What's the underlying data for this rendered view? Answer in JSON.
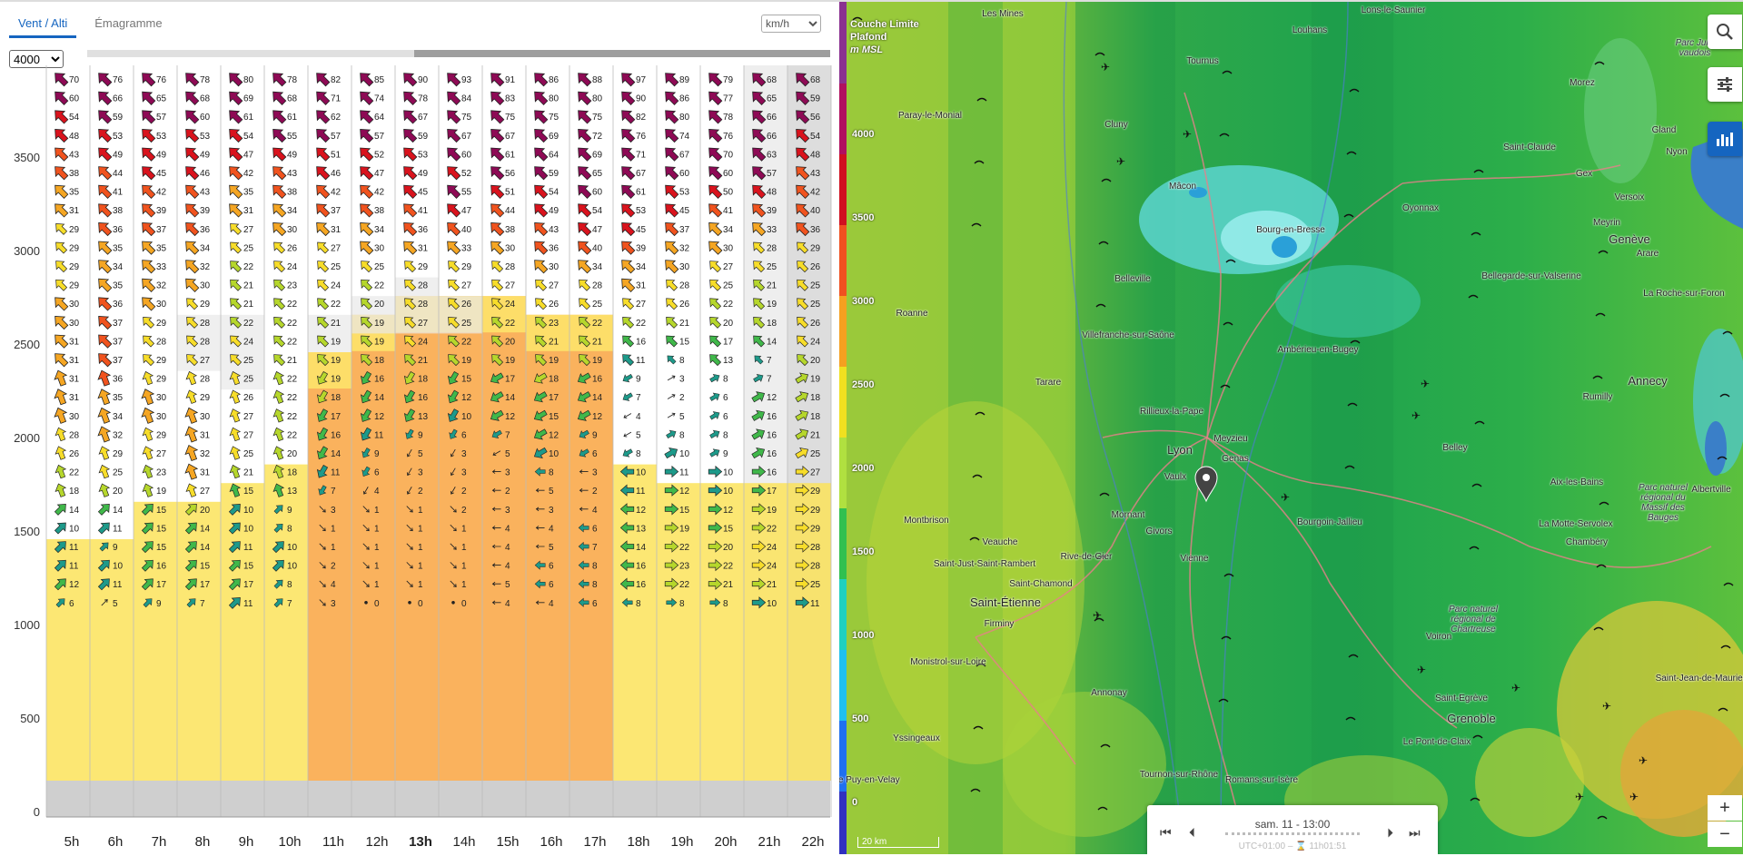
{
  "tabs": [
    {
      "label": "Vent / Alti",
      "active": true
    },
    {
      "label": "Émagramme",
      "active": false
    }
  ],
  "unit": {
    "selected": "km/h"
  },
  "altitude": {
    "selected": "4000"
  },
  "y_axis_labels": [
    "3500",
    "3000",
    "2500",
    "2000",
    "1500",
    "1000",
    "500",
    "0"
  ],
  "hours": [
    "5h",
    "6h",
    "7h",
    "8h",
    "9h",
    "10h",
    "11h",
    "12h",
    "13h",
    "14h",
    "15h",
    "16h",
    "17h",
    "18h",
    "19h",
    "20h",
    "21h",
    "22h"
  ],
  "current_hour": "13h",
  "wind_table": [
    [
      "70",
      "76",
      "76",
      "78",
      "80",
      "78",
      "82",
      "85",
      "90",
      "93",
      "91",
      "86",
      "88",
      "97",
      "89",
      "79",
      "68",
      "68"
    ],
    [
      "60",
      "66",
      "65",
      "68",
      "69",
      "68",
      "71",
      "74",
      "78",
      "84",
      "83",
      "80",
      "80",
      "90",
      "86",
      "77",
      "65",
      "59"
    ],
    [
      "54",
      "59",
      "57",
      "60",
      "61",
      "61",
      "62",
      "64",
      "67",
      "75",
      "75",
      "75",
      "75",
      "82",
      "80",
      "78",
      "66",
      "56"
    ],
    [
      "48",
      "53",
      "53",
      "53",
      "54",
      "55",
      "57",
      "57",
      "59",
      "67",
      "67",
      "69",
      "72",
      "76",
      "74",
      "76",
      "66",
      "54"
    ],
    [
      "43",
      "49",
      "49",
      "49",
      "47",
      "49",
      "51",
      "52",
      "53",
      "60",
      "61",
      "64",
      "69",
      "71",
      "67",
      "70",
      "63",
      "48"
    ],
    [
      "38",
      "44",
      "45",
      "46",
      "42",
      "43",
      "46",
      "47",
      "49",
      "52",
      "56",
      "59",
      "65",
      "67",
      "60",
      "60",
      "57",
      "43"
    ],
    [
      "35",
      "41",
      "42",
      "43",
      "35",
      "38",
      "42",
      "42",
      "45",
      "55",
      "51",
      "54",
      "60",
      "61",
      "53",
      "50",
      "48",
      "42"
    ],
    [
      "31",
      "38",
      "39",
      "39",
      "31",
      "34",
      "37",
      "38",
      "41",
      "47",
      "44",
      "49",
      "54",
      "53",
      "45",
      "41",
      "39",
      "40"
    ],
    [
      "29",
      "36",
      "37",
      "36",
      "27",
      "30",
      "31",
      "34",
      "36",
      "40",
      "38",
      "43",
      "47",
      "45",
      "37",
      "34",
      "33",
      "36"
    ],
    [
      "29",
      "35",
      "35",
      "34",
      "25",
      "26",
      "27",
      "30",
      "31",
      "33",
      "30",
      "36",
      "40",
      "39",
      "32",
      "30",
      "28",
      "29"
    ],
    [
      "29",
      "34",
      "33",
      "32",
      "22",
      "24",
      "25",
      "25",
      "29",
      "29",
      "28",
      "30",
      "34",
      "34",
      "30",
      "27",
      "25",
      "26"
    ],
    [
      "29",
      "35",
      "32",
      "30",
      "21",
      "23",
      "24",
      "22",
      "28",
      "27",
      "27",
      "27",
      "28",
      "31",
      "28",
      "25",
      "21",
      "25"
    ],
    [
      "30",
      "36",
      "30",
      "29",
      "21",
      "22",
      "22",
      "20",
      "28",
      "26",
      "24",
      "26",
      "25",
      "27",
      "26",
      "22",
      "19",
      "25"
    ],
    [
      "30",
      "37",
      "29",
      "28",
      "22",
      "22",
      "21",
      "19",
      "27",
      "25",
      "22",
      "23",
      "22",
      "22",
      "21",
      "20",
      "18",
      "26"
    ],
    [
      "31",
      "37",
      "28",
      "28",
      "24",
      "22",
      "19",
      "19",
      "24",
      "22",
      "20",
      "21",
      "21",
      "16",
      "15",
      "17",
      "14",
      "24"
    ],
    [
      "31",
      "37",
      "29",
      "27",
      "25",
      "21",
      "19",
      "18",
      "21",
      "19",
      "19",
      "19",
      "19",
      "11",
      "8",
      "13",
      "7",
      "20"
    ],
    [
      "31",
      "36",
      "29",
      "28",
      "25",
      "22",
      "19",
      "16",
      "18",
      "15",
      "17",
      "18",
      "16",
      "9",
      "3",
      "8",
      "7",
      "19"
    ],
    [
      "31",
      "35",
      "30",
      "29",
      "26",
      "22",
      "18",
      "14",
      "16",
      "12",
      "14",
      "17",
      "14",
      "7",
      "2",
      "6",
      "12",
      "18"
    ],
    [
      "30",
      "34",
      "30",
      "30",
      "27",
      "22",
      "17",
      "12",
      "13",
      "10",
      "12",
      "15",
      "12",
      "4",
      "5",
      "6",
      "16",
      "18"
    ],
    [
      "28",
      "32",
      "29",
      "31",
      "27",
      "22",
      "16",
      "11",
      "9",
      "6",
      "7",
      "12",
      "9",
      "5",
      "8",
      "8",
      "16",
      "21"
    ],
    [
      "26",
      "29",
      "27",
      "32",
      "25",
      "20",
      "14",
      "9",
      "5",
      "3",
      "5",
      "10",
      "6",
      "8",
      "10",
      "9",
      "16",
      "25"
    ],
    [
      "22",
      "25",
      "23",
      "31",
      "21",
      "18",
      "11",
      "6",
      "3",
      "3",
      "3",
      "8",
      "3",
      "10",
      "11",
      "10",
      "16",
      "27"
    ],
    [
      "18",
      "20",
      "19",
      "27",
      "15",
      "13",
      "7",
      "4",
      "2",
      "2",
      "2",
      "5",
      "2",
      "11",
      "12",
      "10",
      "17",
      "29"
    ],
    [
      "14",
      "14",
      "15",
      "20",
      "10",
      "9",
      "3",
      "1",
      "1",
      "2",
      "3",
      "3",
      "4",
      "12",
      "15",
      "12",
      "19",
      "29"
    ],
    [
      "10",
      "11",
      "15",
      "14",
      "10",
      "8",
      "1",
      "1",
      "1",
      "1",
      "4",
      "4",
      "6",
      "13",
      "19",
      "15",
      "22",
      "29"
    ],
    [
      "11",
      "9",
      "15",
      "14",
      "11",
      "10",
      "1",
      "1",
      "1",
      "1",
      "4",
      "5",
      "7",
      "14",
      "22",
      "20",
      "24",
      "28"
    ],
    [
      "11",
      "10",
      "16",
      "15",
      "15",
      "10",
      "2",
      "1",
      "1",
      "1",
      "4",
      "6",
      "8",
      "16",
      "23",
      "22",
      "24",
      "28"
    ],
    [
      "12",
      "11",
      "17",
      "17",
      "17",
      "8",
      "4",
      "1",
      "1",
      "1",
      "5",
      "6",
      "8",
      "16",
      "22",
      "21",
      "21",
      "25"
    ],
    [
      "6",
      "5",
      "9",
      "7",
      "11",
      "7",
      "3",
      "0",
      "0",
      "0",
      "4",
      "4",
      "6",
      "8",
      "8",
      "8",
      "10",
      "11"
    ]
  ],
  "map": {
    "legend_title": [
      "Couche Limite",
      "Plafond",
      "m MSL"
    ],
    "legend_ticks": [
      "4000",
      "3500",
      "3000",
      "2500",
      "2000",
      "1500",
      "1000",
      "500",
      "0"
    ],
    "scale": "20 km",
    "timebar": {
      "date": "sam. 11 - 13:00",
      "sub": "UTC+01:00 – ⌛ 11h01:51"
    },
    "cities": [
      "Lons-le-Saunier",
      "Louhans",
      "Tournus",
      "Les Mines",
      "Paray-le-Monial",
      "Cluny",
      "Mâcon",
      "Bourg-en-Bresse",
      "Oyonnax",
      "Saint-Claude",
      "Morez",
      "Parc Jura vaudois",
      "Gland",
      "Nyon",
      "Gex",
      "Versoix",
      "Meyrin",
      "Genève",
      "Arare",
      "Bellegarde-sur-Valserine",
      "La Roche-sur-Foron",
      "Roanne",
      "Belleville",
      "Villefranche-sur-Saône",
      "Ambérieu-en-Bugey",
      "Tarare",
      "Rillieux-la-Pape",
      "Lyon",
      "Meyzieu",
      "Genas",
      "Vaulx",
      "Rumilly",
      "Annecy",
      "Belley",
      "Aix-les-Bains",
      "Parc naturel régional du Massif des Bauges",
      "Albertville",
      "Montbrison",
      "Veauche",
      "Mornant",
      "Givors",
      "Bourgoin-Jallieu",
      "La Motte-Servolex",
      "Chambéry",
      "Saint-Just-Saint-Rambert",
      "Rive-de-Gier",
      "Saint-Chamond",
      "Saint-Étienne",
      "Vienne",
      "Firminy",
      "Parc naturel régional de Chartreuse",
      "Voiron",
      "Monistrol-sur-Loire",
      "Annonay",
      "Saint-Egrève",
      "Grenoble",
      "Yssingeaux",
      "Le Pont-de-Claix",
      "Saint-Jean-de-Maurienne",
      "Le Puy-en-Velay",
      "Tournon-sur-Rhône",
      "Romans-sur-Isère"
    ]
  }
}
